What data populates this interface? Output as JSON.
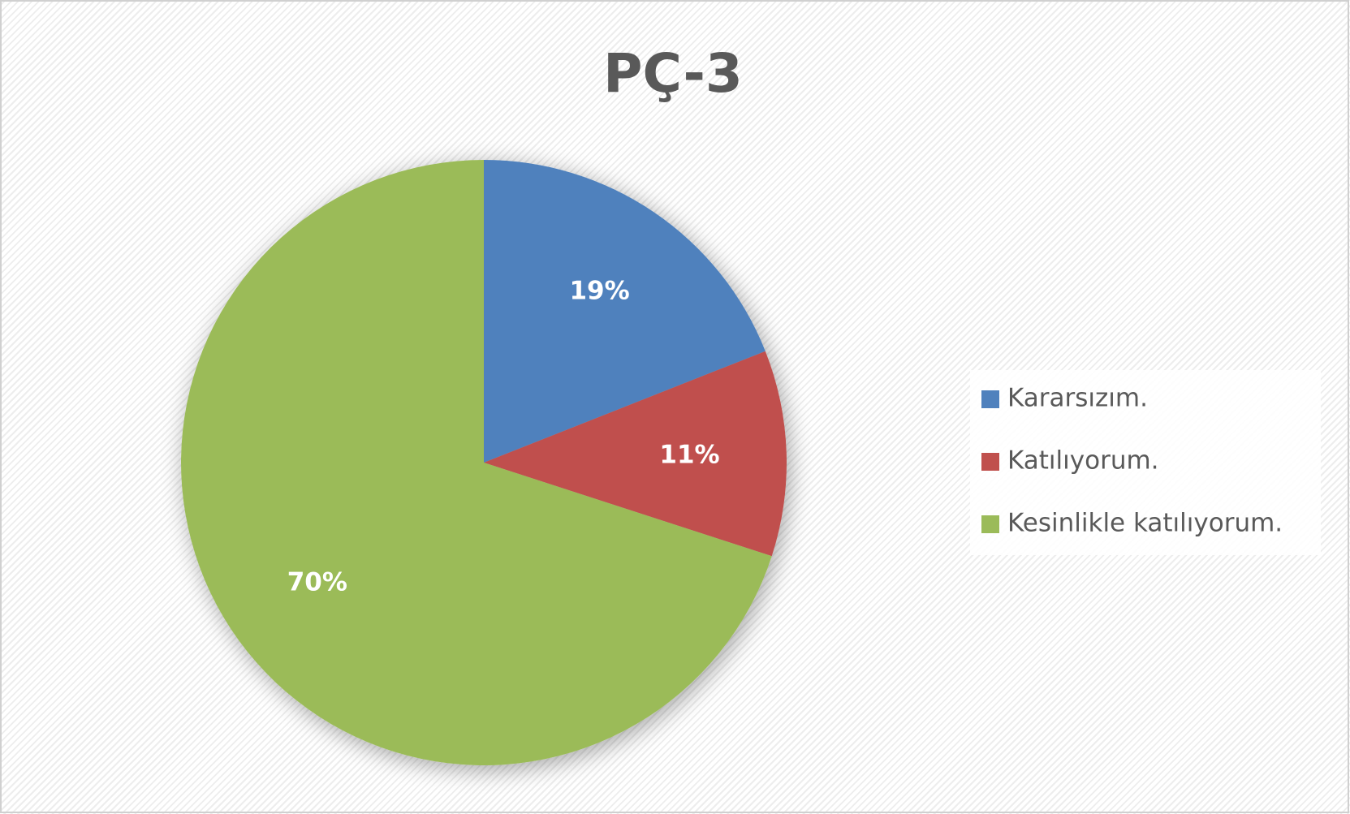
{
  "chart_data": {
    "type": "pie",
    "title": "PÇ-3",
    "categories": [
      "Kararsızım.",
      "Katılıyorum.",
      "Kesinlikle katılıyorum."
    ],
    "values": [
      19,
      11,
      70
    ],
    "value_labels": [
      "19%",
      "11%",
      "70%"
    ],
    "colors": [
      "#4f81bd",
      "#c0504d",
      "#9bbb59"
    ],
    "legend": "right"
  }
}
